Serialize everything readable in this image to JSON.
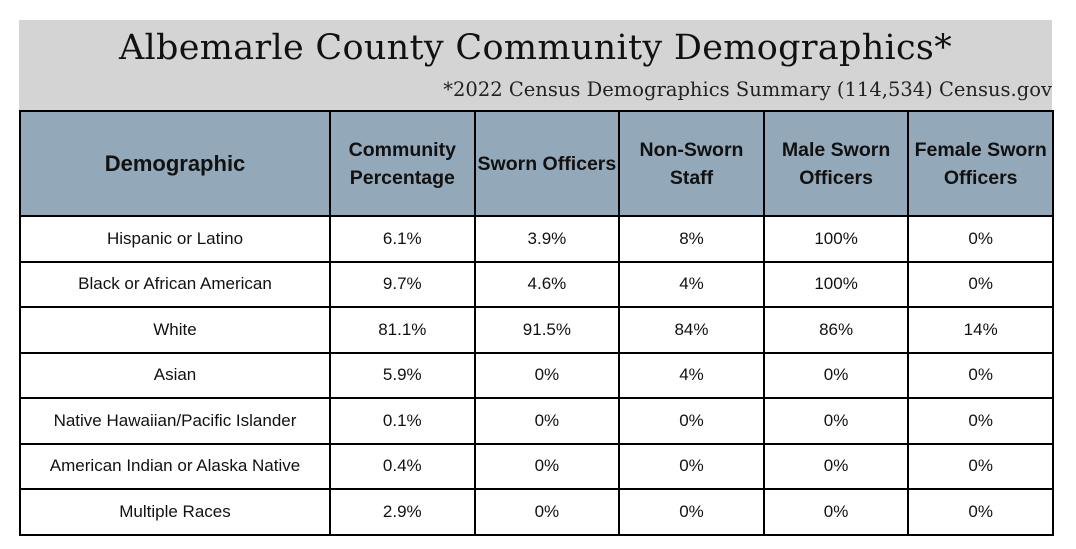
{
  "title": "Albemarle County Community Demographics*",
  "subtitle": "*2022 Census Demographics Summary (114,534) Census.gov",
  "table": {
    "headers": [
      "Demographic",
      "Community Percentage",
      "Sworn Officers",
      "Non-Sworn Staff",
      "Male Sworn Officers",
      "Female Sworn Officers"
    ],
    "rows": [
      [
        "Hispanic or Latino",
        "6.1%",
        "3.9%",
        "8%",
        "100%",
        "0%"
      ],
      [
        "Black or African American",
        "9.7%",
        "4.6%",
        "4%",
        "100%",
        "0%"
      ],
      [
        "White",
        "81.1%",
        "91.5%",
        "84%",
        "86%",
        "14%"
      ],
      [
        "Asian",
        "5.9%",
        "0%",
        "4%",
        "0%",
        "0%"
      ],
      [
        "Native Hawaiian/Pacific Islander",
        "0.1%",
        "0%",
        "0%",
        "0%",
        "0%"
      ],
      [
        "American Indian or Alaska Native",
        "0.4%",
        "0%",
        "0%",
        "0%",
        "0%"
      ],
      [
        "Multiple Races",
        "2.9%",
        "0%",
        "0%",
        "0%",
        "0%"
      ]
    ]
  },
  "colors": {
    "header_band": "#d4d4d4",
    "column_header_bg": "#93a9b9",
    "border": "#000000"
  }
}
